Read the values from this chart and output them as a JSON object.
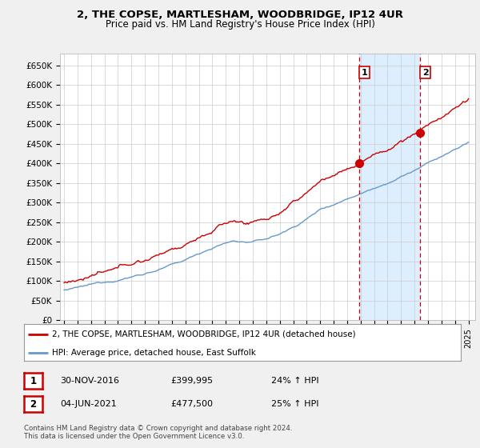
{
  "title": "2, THE COPSE, MARTLESHAM, WOODBRIDGE, IP12 4UR",
  "subtitle": "Price paid vs. HM Land Registry's House Price Index (HPI)",
  "ylabel_ticks": [
    "£0",
    "£50K",
    "£100K",
    "£150K",
    "£200K",
    "£250K",
    "£300K",
    "£350K",
    "£400K",
    "£450K",
    "£500K",
    "£550K",
    "£600K",
    "£650K"
  ],
  "ylim": [
    0,
    680000
  ],
  "ytick_values": [
    0,
    50000,
    100000,
    150000,
    200000,
    250000,
    300000,
    350000,
    400000,
    450000,
    500000,
    550000,
    600000,
    650000
  ],
  "sale1_date_x": 2016.92,
  "sale1_price": 399995,
  "sale1_label": "1",
  "sale2_date_x": 2021.42,
  "sale2_price": 477500,
  "sale2_label": "2",
  "legend_line1": "2, THE COPSE, MARTLESHAM, WOODBRIDGE, IP12 4UR (detached house)",
  "legend_line2": "HPI: Average price, detached house, East Suffolk",
  "table_row1": [
    "1",
    "30-NOV-2016",
    "£399,995",
    "24% ↑ HPI"
  ],
  "table_row2": [
    "2",
    "04-JUN-2021",
    "£477,500",
    "25% ↑ HPI"
  ],
  "footer": "Contains HM Land Registry data © Crown copyright and database right 2024.\nThis data is licensed under the Open Government Licence v3.0.",
  "line_color_red": "#cc0000",
  "line_color_blue": "#6699cc",
  "shade_color": "#ddeeff",
  "background_color": "#f0f0f0",
  "plot_bg_color": "#ffffff",
  "grid_color": "#cccccc",
  "vline_color": "#cc0000",
  "marker_color_red": "#cc0000",
  "xlim_left": 1994.7,
  "xlim_right": 2025.5
}
